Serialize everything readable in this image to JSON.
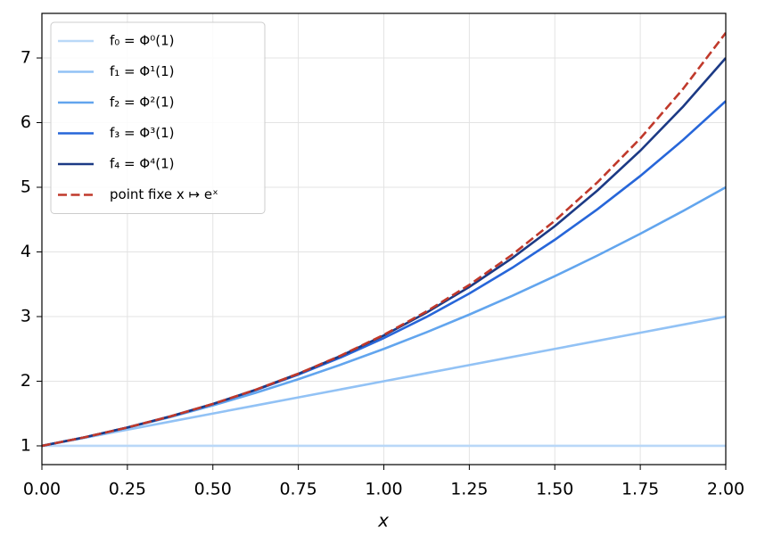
{
  "chart_data": {
    "type": "line",
    "xlabel": "x",
    "x": [
      0,
      0.125,
      0.25,
      0.375,
      0.5,
      0.625,
      0.75,
      0.875,
      1,
      1.125,
      1.25,
      1.375,
      1.5,
      1.625,
      1.75,
      1.875,
      2
    ],
    "series": [
      {
        "name": "f₀ = Φ⁰(1)",
        "color": "#b9d8f8",
        "linestyle": "solid",
        "values": [
          1,
          1,
          1,
          1,
          1,
          1,
          1,
          1,
          1,
          1,
          1,
          1,
          1,
          1,
          1,
          1,
          1
        ]
      },
      {
        "name": "f₁ = Φ¹(1)",
        "color": "#92c2f5",
        "linestyle": "solid",
        "values": [
          1,
          1.125,
          1.25,
          1.375,
          1.5,
          1.625,
          1.75,
          1.875,
          2,
          2.125,
          2.25,
          2.375,
          2.5,
          2.625,
          2.75,
          2.875,
          3
        ]
      },
      {
        "name": "f₂ = Φ²(1)",
        "color": "#62a5ee",
        "linestyle": "solid",
        "values": [
          1,
          1.133,
          1.281,
          1.445,
          1.625,
          1.82,
          2.031,
          2.258,
          2.5,
          2.758,
          3.031,
          3.32,
          3.625,
          3.945,
          4.281,
          4.633,
          5
        ]
      },
      {
        "name": "f₃ = Φ³(1)",
        "color": "#2766d9",
        "linestyle": "solid",
        "values": [
          1,
          1.133,
          1.284,
          1.454,
          1.646,
          1.861,
          2.102,
          2.37,
          2.667,
          2.995,
          3.357,
          3.753,
          4.188,
          4.661,
          5.175,
          5.732,
          6.333
        ]
      },
      {
        "name": "f₄ = Φ⁴(1)",
        "color": "#1c3a85",
        "linestyle": "solid",
        "values": [
          1,
          1.133,
          1.284,
          1.455,
          1.648,
          1.867,
          2.115,
          2.394,
          2.708,
          3.062,
          3.459,
          3.902,
          4.398,
          4.952,
          5.566,
          6.247,
          7
        ]
      },
      {
        "name": "point fixe x ↦ eˣ",
        "color": "#c0392b",
        "linestyle": "dashed",
        "values": [
          1,
          1.133,
          1.284,
          1.455,
          1.649,
          1.868,
          2.117,
          2.399,
          2.718,
          3.08,
          3.49,
          3.955,
          4.482,
          5.078,
          5.755,
          6.521,
          7.389
        ]
      }
    ],
    "xlim": [
      0,
      2
    ],
    "xticks": [
      {
        "value": 0,
        "label": "0.00"
      },
      {
        "value": 0.25,
        "label": "0.25"
      },
      {
        "value": 0.5,
        "label": "0.50"
      },
      {
        "value": 0.75,
        "label": "0.75"
      },
      {
        "value": 1,
        "label": "1.00"
      },
      {
        "value": 1.25,
        "label": "1.25"
      },
      {
        "value": 1.5,
        "label": "1.50"
      },
      {
        "value": 1.75,
        "label": "1.75"
      },
      {
        "value": 2,
        "label": "2.00"
      }
    ],
    "ylim": [
      0.71,
      7.69
    ],
    "yticks": [
      1,
      2,
      3,
      4,
      5,
      6,
      7
    ],
    "grid": true,
    "legend": "upper left"
  }
}
